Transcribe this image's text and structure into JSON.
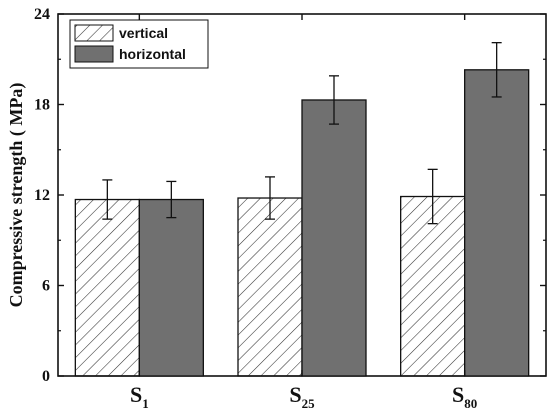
{
  "chart_data": {
    "type": "bar",
    "categories": [
      "S1",
      "S25",
      "S80"
    ],
    "category_labels": [
      {
        "main": "S",
        "sub": "1"
      },
      {
        "main": "S",
        "sub": "25"
      },
      {
        "main": "S",
        "sub": "80"
      }
    ],
    "series": [
      {
        "name": "vertical",
        "values": [
          11.7,
          11.8,
          11.9
        ],
        "errors": [
          1.3,
          1.4,
          1.8
        ],
        "fill": "hatch"
      },
      {
        "name": "horizontal",
        "values": [
          11.7,
          18.3,
          20.3
        ],
        "errors": [
          1.2,
          1.6,
          1.8
        ],
        "fill": "#707070"
      }
    ],
    "ylabel": "Compressive strength ( MPa)",
    "xlabel": "",
    "ylim": [
      0,
      24
    ],
    "yticks": [
      0,
      6,
      12,
      18,
      24
    ],
    "legend_position": "top-left",
    "grid": false,
    "colors": {
      "bar_solid": "#707070",
      "hatch_line": "#333333",
      "axis": "#111111"
    }
  }
}
